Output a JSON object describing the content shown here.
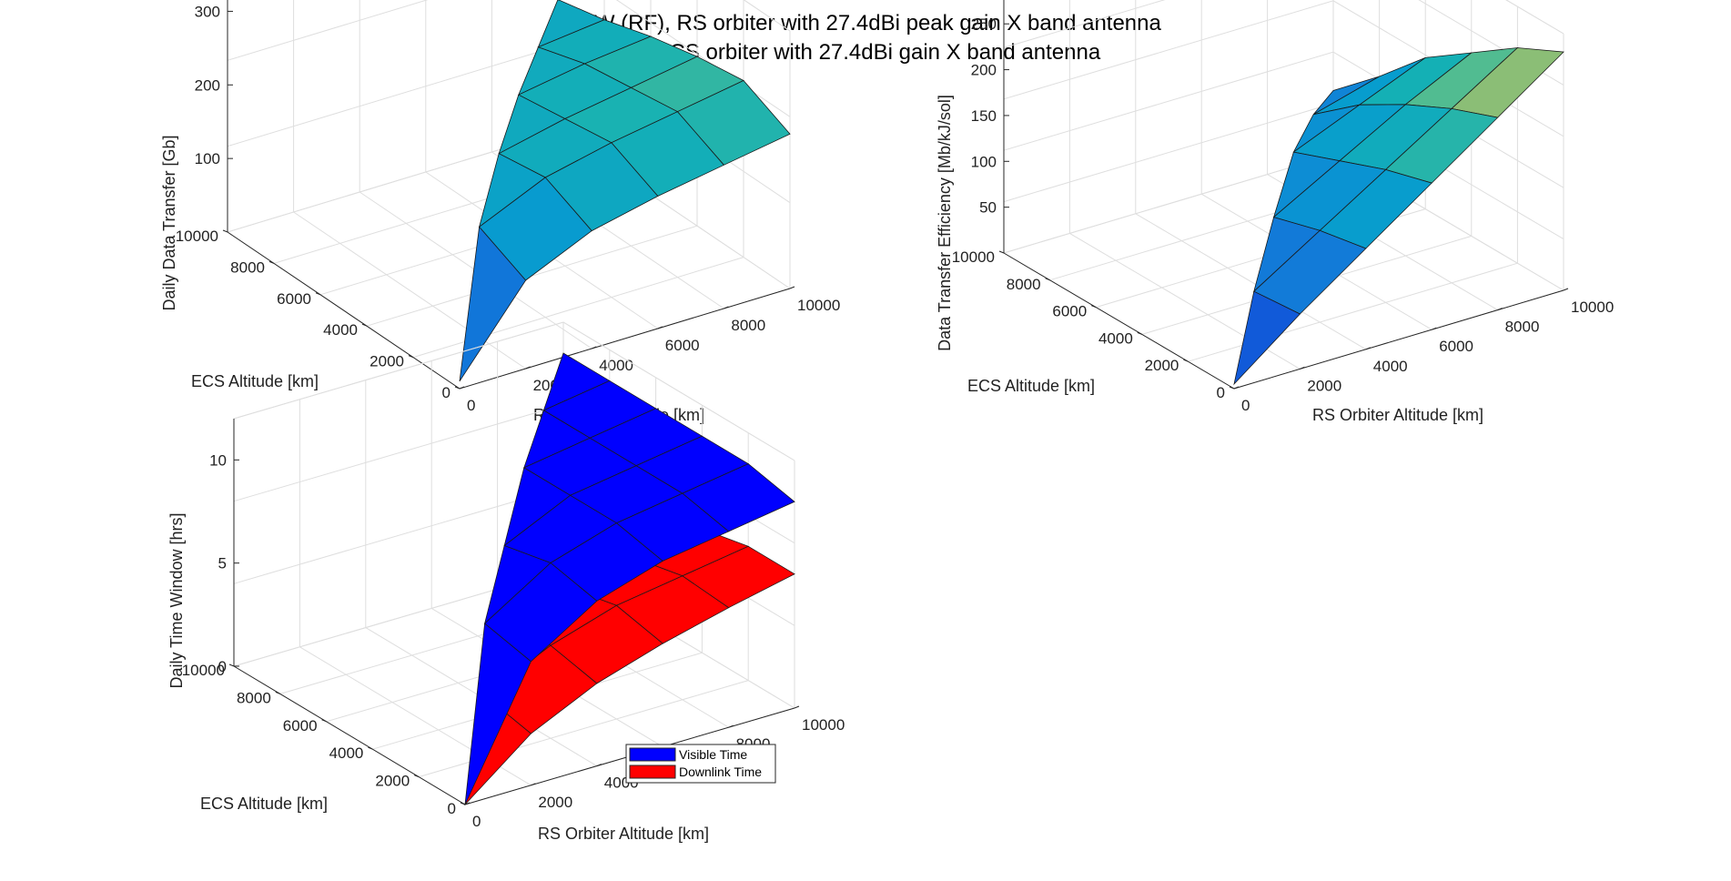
{
  "figure": {
    "title_line1": "25W (RF), RS orbiter with 27.4dBi peak gain X band antenna",
    "title_line2": "to ECS orbiter with 27.4dBi gain X band antenna"
  },
  "chart_data": [
    {
      "type": "surface",
      "id": "data-transfer",
      "xlabel": "RS Orbiter Altitude [km]",
      "ylabel": "ECS Altitude [km]",
      "zlabel": "Daily Data Transfer [Gb]",
      "xticks": [
        "0",
        "2000",
        "4000",
        "6000",
        "8000",
        "10000"
      ],
      "yticks": [
        "0",
        "2000",
        "4000",
        "6000",
        "8000",
        "10000"
      ],
      "zticks": [
        "100",
        "200",
        "300"
      ],
      "xlim": [
        0,
        10000
      ],
      "ylim": [
        0,
        10000
      ],
      "zlim": [
        0,
        350
      ],
      "grid": true,
      "colormap": "parula",
      "surface": {
        "x": [
          0,
          2000,
          4000,
          6000,
          8000,
          10000
        ],
        "y": [
          0,
          2000,
          4000,
          6000,
          8000,
          10000
        ],
        "z": [
          [
            10,
            120,
            160,
            180,
            195,
            210
          ],
          [
            null,
            150,
            190,
            210,
            225,
            240
          ],
          [
            null,
            null,
            180,
            200,
            215,
            230
          ],
          [
            null,
            null,
            null,
            190,
            205,
            215
          ],
          [
            null,
            null,
            null,
            null,
            185,
            195
          ],
          [
            null,
            null,
            null,
            null,
            null,
            180
          ]
        ]
      }
    },
    {
      "type": "surface",
      "id": "transfer-efficiency",
      "xlabel": "RS Orbiter Altitude [km]",
      "ylabel": "ECS Altitude [km]",
      "zlabel": "Data Transfer Efficiency [Mb/kJ/sol]",
      "xticks": [
        "0",
        "2000",
        "4000",
        "6000",
        "8000",
        "10000"
      ],
      "yticks": [
        "0",
        "2000",
        "4000",
        "6000",
        "8000",
        "10000"
      ],
      "zticks": [
        "50",
        "100",
        "150",
        "200",
        "250"
      ],
      "xlim": [
        0,
        10000
      ],
      "ylim": [
        0,
        10000
      ],
      "zlim": [
        0,
        280
      ],
      "grid": true,
      "colormap": "parula",
      "surface": {
        "x": [
          0,
          2000,
          4000,
          6000,
          8000,
          10000
        ],
        "y": [
          0,
          2000,
          4000,
          6000,
          8000,
          10000
        ],
        "z": [
          [
            5,
            60,
            110,
            160,
            210,
            260
          ],
          [
            null,
            55,
            100,
            145,
            190,
            235
          ],
          [
            null,
            null,
            85,
            125,
            165,
            200
          ],
          [
            null,
            null,
            null,
            105,
            135,
            165
          ],
          [
            null,
            null,
            null,
            null,
            95,
            115
          ],
          [
            null,
            null,
            null,
            null,
            null,
            70
          ]
        ]
      }
    },
    {
      "type": "surface",
      "id": "time-window",
      "xlabel": "RS Orbiter Altitude [km]",
      "ylabel": "ECS Altitude [km]",
      "zlabel": "Daily Time Window [hrs]",
      "xticks": [
        "0",
        "2000",
        "4000",
        "6000",
        "8000",
        "10000"
      ],
      "yticks": [
        "0",
        "2000",
        "4000",
        "6000",
        "8000",
        "10000"
      ],
      "zticks": [
        "0",
        "5",
        "10"
      ],
      "xlim": [
        0,
        10000
      ],
      "ylim": [
        0,
        10000
      ],
      "zlim": [
        0,
        12
      ],
      "grid": true,
      "legend_location": "lower-right",
      "series": [
        {
          "name": "Visible Time",
          "color": "#0000ff",
          "surface": {
            "x": [
              0,
              2000,
              4000,
              6000,
              8000,
              10000
            ],
            "y": [
              0,
              2000,
              4000,
              6000,
              8000,
              10000
            ],
            "z": [
              [
                0,
                6,
                8,
                9,
                9.5,
                10
              ],
              [
                null,
                6.5,
                8.5,
                9.5,
                10,
                10.5
              ],
              [
                null,
                null,
                8,
                9.5,
                10,
                10.5
              ],
              [
                null,
                null,
                null,
                9.5,
                10,
                10.5
              ],
              [
                null,
                null,
                null,
                null,
                10,
                10.5
              ],
              [
                null,
                null,
                null,
                null,
                null,
                10.5
              ]
            ]
          }
        },
        {
          "name": "Downlink Time",
          "color": "#ff0000",
          "surface": {
            "x": [
              0,
              2000,
              4000,
              6000,
              8000,
              10000
            ],
            "y": [
              0,
              2000,
              4000,
              6000,
              8000,
              10000
            ],
            "z": [
              [
                0,
                2.5,
                4,
                5,
                5.8,
                6.5
              ],
              [
                null,
                3,
                4.5,
                5.5,
                6,
                6.5
              ],
              [
                null,
                null,
                4,
                5,
                5.5,
                6
              ],
              [
                null,
                null,
                null,
                4.5,
                5,
                5.5
              ],
              [
                null,
                null,
                null,
                null,
                4.5,
                5
              ],
              [
                null,
                null,
                null,
                null,
                null,
                4.5
              ]
            ]
          }
        }
      ]
    }
  ]
}
